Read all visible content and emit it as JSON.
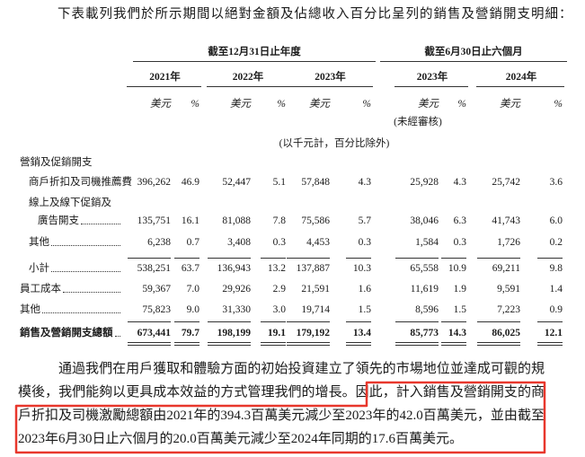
{
  "intro": "下表載列我們於所示期間以絕對金額及佔總收入百分比呈列的銷售及營銷開支明細：",
  "table": {
    "period_headers": [
      "截至12月31日止年度",
      "截至6月30日止六個月"
    ],
    "years": [
      "2021年",
      "2022年",
      "2023年",
      "2023年",
      "2024年"
    ],
    "units": [
      "美元",
      "%",
      "美元",
      "%",
      "美元",
      "%",
      "美元",
      "%",
      "美元",
      "%"
    ],
    "unaudited_note": "(未經審核)",
    "unit_note": "(以千元計，百分比除外)",
    "section": "營銷及促銷開支",
    "rows": [
      {
        "label": "商戶折扣及司機推薦費",
        "values": [
          "396,262",
          "46.9",
          "52,447",
          "5.1",
          "57,848",
          "4.3",
          "25,928",
          "4.3",
          "25,742",
          "3.6"
        ]
      },
      {
        "label": "線上及線下促銷及",
        "label_cont": "廣告開支",
        "values": [
          "135,751",
          "16.1",
          "81,088",
          "7.8",
          "75,586",
          "5.7",
          "38,046",
          "6.3",
          "41,743",
          "6.0"
        ]
      },
      {
        "label": "其他",
        "values": [
          "6,238",
          "0.7",
          "3,408",
          "0.3",
          "4,453",
          "0.3",
          "1,584",
          "0.3",
          "1,726",
          "0.2"
        ]
      },
      {
        "label": "小計",
        "values": [
          "538,251",
          "63.7",
          "136,943",
          "13.2",
          "137,887",
          "10.3",
          "65,558",
          "10.9",
          "69,211",
          "9.8"
        ]
      },
      {
        "label": "員工成本",
        "values": [
          "59,367",
          "7.0",
          "29,926",
          "2.9",
          "21,591",
          "1.6",
          "11,619",
          "1.9",
          "9,591",
          "1.4"
        ]
      },
      {
        "label": "其他",
        "values": [
          "75,823",
          "9.0",
          "31,330",
          "3.0",
          "19,714",
          "1.5",
          "8,596",
          "1.5",
          "7,223",
          "0.9"
        ]
      },
      {
        "label": "銷售及營銷開支總額",
        "values": [
          "673,441",
          "79.7",
          "198,199",
          "19.1",
          "179,192",
          "13.4",
          "85,773",
          "14.3",
          "86,025",
          "12.1"
        ]
      }
    ]
  },
  "paragraph": {
    "text": "通過我們在用戶獲取和體驗方面的初始投資建立了領先的市場地位並達成可觀的規模後，我們能夠以更具成本效益的方式管理我們的增長。因此，",
    "highlighted": "計入銷售及營銷開支的商戶折扣及司機激勵總額由2021年的394.3百萬美元減少至2023年的42.0百萬美元，並由截至2023年6月30日止六個月的20.0百萬美元減少至2024年同期的17.6百萬美元。"
  }
}
